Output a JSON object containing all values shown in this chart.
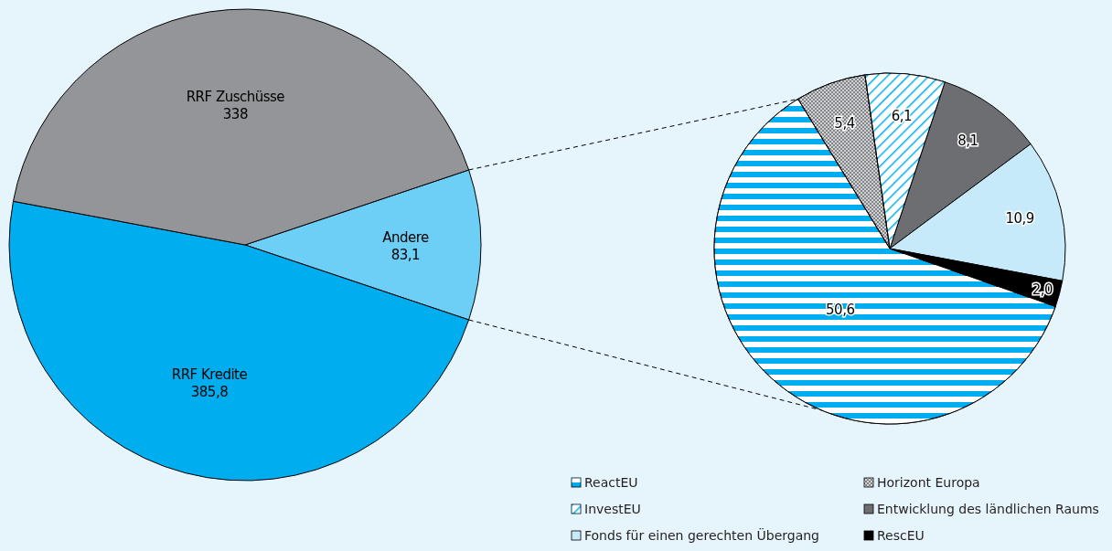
{
  "chart_data": [
    {
      "type": "pie",
      "categories": [
        "Andere",
        "RRF Kredite",
        "RRF Zuschüsse"
      ],
      "values": [
        83.1,
        385.8,
        338
      ],
      "colors": [
        "#6dcff6",
        "#00aeef",
        "#939598"
      ],
      "value_labels": [
        "83,1",
        "385,8",
        "338"
      ]
    },
    {
      "type": "pie",
      "categories": [
        "ReactEU",
        "Horizont Europa",
        "InvestEU",
        "Entwicklung des ländlichen Raums",
        "Fonds für einen gerechten Übergang",
        "RescEU"
      ],
      "values": [
        50.6,
        5.4,
        6.1,
        8.1,
        10.9,
        2.0
      ],
      "colors": [
        "#00aeef",
        "#808285",
        "#00aeef",
        "#6d6e71",
        "#c7eafb",
        "#000000"
      ],
      "value_labels": [
        "50,6",
        "5,4",
        "6,1",
        "8,1",
        "10,9",
        "2,0"
      ],
      "legend": "bottom"
    }
  ]
}
